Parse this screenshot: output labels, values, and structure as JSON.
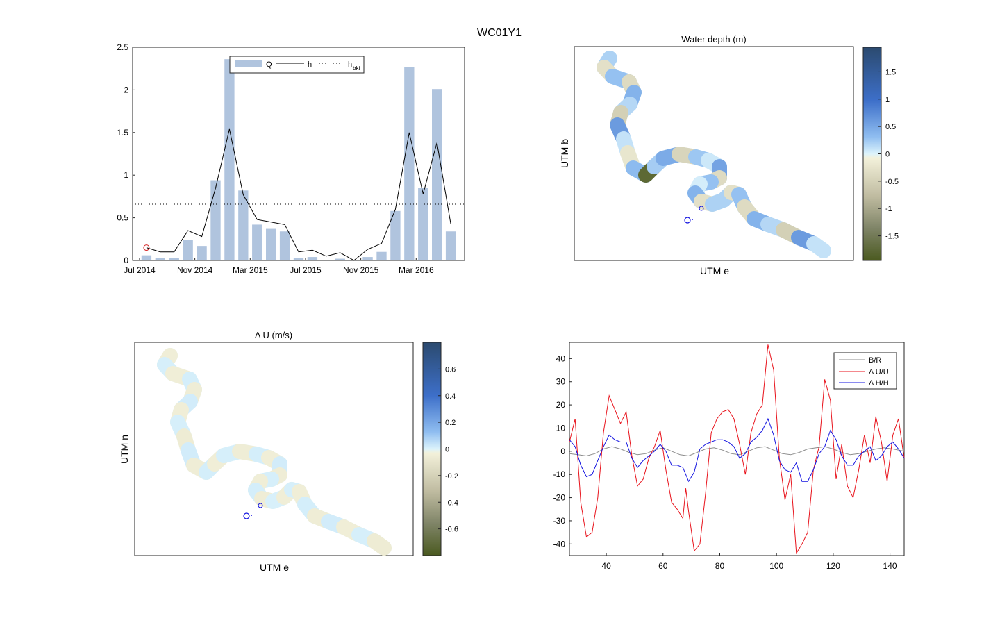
{
  "figure": {
    "title": "WC01Y1"
  },
  "chart_data": [
    {
      "id": "ts",
      "type": "bar",
      "title": "",
      "xlabel": "",
      "ylabel": "",
      "ylim": [
        0,
        2.5
      ],
      "yticks": [
        0,
        0.5,
        1,
        1.5,
        2,
        2.5
      ],
      "ytick_labels": [
        "0",
        "0.5",
        "1",
        "1.5",
        "2",
        "2.5"
      ],
      "xlim": [
        -0.5,
        23.5
      ],
      "xticks": [
        0,
        4,
        8,
        12,
        16,
        20
      ],
      "xtick_labels": [
        "Jul 2014",
        "Nov 2014",
        "Mar 2015",
        "Jul 2015",
        "Nov 2015",
        "Mar 2016"
      ],
      "legend": {
        "position": "top",
        "entries": [
          "Q",
          "h",
          "h",
          "bkf"
        ]
      },
      "series": [
        {
          "name": "Q",
          "kind": "bar",
          "color": "#b0c4de",
          "values": [
            0.06,
            0.03,
            0.03,
            0.24,
            0.17,
            0.94,
            2.36,
            0.82,
            0.42,
            0.37,
            0.34,
            0.03,
            0.04,
            0.0,
            0.02,
            0.0,
            0.04,
            0.1,
            0.58,
            2.27,
            0.85,
            2.01,
            0.34
          ]
        },
        {
          "name": "h",
          "kind": "line",
          "color": "#000000",
          "x": [
            0.5,
            1.5,
            2.5,
            3.5,
            4.5,
            5.5,
            6.5,
            7.5,
            8.5,
            9.5,
            10.5,
            11.5,
            12.5,
            13.5,
            14.5,
            15.5,
            16.5,
            17.5,
            18.5,
            19.5,
            20.5,
            21.5,
            22.5
          ],
          "values": [
            0.15,
            0.1,
            0.1,
            0.35,
            0.28,
            0.85,
            1.54,
            0.77,
            0.48,
            0.45,
            0.42,
            0.1,
            0.12,
            0.05,
            0.09,
            0.0,
            0.13,
            0.2,
            0.6,
            1.5,
            0.78,
            1.38,
            0.43
          ]
        },
        {
          "name": "h_bkf",
          "kind": "line-dotted",
          "color": "#000000",
          "value": 0.66
        }
      ],
      "marker": {
        "x": 0.5,
        "y": 0.15,
        "color": "#d62728"
      }
    },
    {
      "id": "depth",
      "type": "heatmap",
      "title": "Water depth (m)",
      "xlabel": "UTM e",
      "ylabel": "UTM b",
      "colorbar": {
        "range": [
          -1.95,
          1.95
        ],
        "ticks": [
          1.5,
          1,
          0.5,
          0,
          -0.5,
          -1,
          -1.5
        ],
        "tick_labels": [
          "1.5",
          "1",
          "0.5",
          "0",
          "-0.5",
          "-1",
          "-1.5"
        ]
      },
      "segments": [
        0.6,
        -0.3,
        0.9,
        -0.4,
        1.1,
        0.5,
        -0.6,
        1.4,
        0.3,
        -0.2,
        1.0,
        -1.8,
        0.7,
        1.2,
        -0.5,
        0.8,
        0.2,
        1.3,
        -0.4,
        0.9,
        0.1,
        1.1,
        -0.3,
        0.6
      ],
      "colors": {
        "high": "#2b4a6f",
        "mid": "#4a78d6",
        "zero": "#d8f2fb",
        "neg": "#ece7cf",
        "low": "#4b5a20"
      }
    },
    {
      "id": "du",
      "type": "heatmap",
      "title": "Δ U (m/s)",
      "xlabel": "UTM e",
      "ylabel": "UTM n",
      "colorbar": {
        "range": [
          -0.8,
          0.8
        ],
        "ticks": [
          0.6,
          0.4,
          0.2,
          0,
          -0.2,
          -0.4,
          -0.6
        ],
        "tick_labels": [
          "0.6",
          "0.4",
          "0.2",
          "0",
          "-0.2",
          "-0.4",
          "-0.6"
        ]
      },
      "segments": [
        -0.02,
        0.03,
        -0.02,
        0.04,
        -0.03,
        0.05,
        -0.02,
        0.03,
        -0.04,
        0.05,
        -0.03,
        0.04,
        -0.02,
        0.03,
        -0.03,
        0.04,
        -0.02,
        0.05,
        -0.03,
        0.03,
        -0.02,
        0.04,
        -0.03,
        0.02
      ],
      "colors": {
        "high": "#2b4a6f",
        "mid": "#4a78d6",
        "zero": "#d8f2fb",
        "neg": "#ece7cf",
        "low": "#4b5a20"
      }
    },
    {
      "id": "profiles",
      "type": "line",
      "title": "",
      "xlabel": "",
      "ylabel": "",
      "xlim": [
        27,
        145
      ],
      "ylim": [
        -45,
        47
      ],
      "xticks": [
        40,
        60,
        80,
        100,
        120,
        140
      ],
      "xtick_labels": [
        "40",
        "60",
        "80",
        "100",
        "120",
        "140"
      ],
      "yticks": [
        40,
        30,
        20,
        10,
        0,
        -10,
        -20,
        -30,
        -40
      ],
      "ytick_labels": [
        "40",
        "30",
        "20",
        "10",
        "0",
        "-10",
        "-20",
        "-30",
        "-40"
      ],
      "legend": {
        "position": "top-right",
        "entries": [
          "B/R",
          "Δ U/U",
          "Δ H/H"
        ]
      },
      "series": [
        {
          "name": "B/R",
          "color": "#8c8c8c",
          "x": [
            27,
            30,
            33,
            36,
            39,
            42,
            45,
            48,
            51,
            54,
            57,
            60,
            63,
            66,
            69,
            72,
            75,
            78,
            81,
            84,
            87,
            90,
            93,
            96,
            99,
            102,
            105,
            108,
            111,
            114,
            117,
            120,
            123,
            126,
            129,
            132,
            135,
            138,
            141,
            145
          ],
          "values": [
            -1,
            -1.5,
            -2,
            -1,
            1,
            2,
            1,
            -0.5,
            -1.5,
            -1,
            0.5,
            1.5,
            0,
            -1.5,
            -2,
            -0.5,
            1,
            1.5,
            0.5,
            -1,
            -1.5,
            0,
            1.5,
            2,
            0.5,
            -1,
            -1.5,
            -0.5,
            1,
            1.5,
            2,
            1,
            -0.5,
            -1.5,
            -1,
            0,
            1,
            1.5,
            1,
            0
          ]
        },
        {
          "name": "Δ U/U",
          "color": "#e8121b",
          "x": [
            27,
            29,
            31,
            33,
            35,
            37,
            39,
            41,
            43,
            45,
            47,
            49,
            51,
            53,
            55,
            57,
            59,
            61,
            63,
            65,
            67,
            68,
            69,
            71,
            73,
            75,
            77,
            79,
            81,
            83,
            85,
            87,
            89,
            91,
            93,
            95,
            97,
            99,
            101,
            103,
            105,
            107,
            109,
            111,
            113,
            115,
            117,
            119,
            121,
            123,
            125,
            127,
            129,
            131,
            133,
            135,
            137,
            139,
            141,
            143,
            145
          ],
          "values": [
            4,
            14,
            -22,
            -37,
            -35,
            -20,
            8,
            24,
            18,
            12,
            17,
            -2,
            -15,
            -12,
            -3,
            2,
            9,
            -8,
            -22,
            -25,
            -29,
            -16,
            -26,
            -43,
            -40,
            -18,
            8,
            14,
            17,
            18,
            14,
            3,
            -10,
            8,
            16,
            20,
            46,
            35,
            -3,
            -21,
            -10,
            -44,
            -40,
            -35,
            -8,
            2,
            31,
            22,
            -12,
            3,
            -15,
            -20,
            -8,
            7,
            -5,
            15,
            4,
            -13,
            7,
            14,
            -3
          ]
        },
        {
          "name": "Δ H/H",
          "color": "#1414e0",
          "x": [
            27,
            29,
            31,
            33,
            35,
            37,
            39,
            41,
            43,
            45,
            47,
            49,
            51,
            53,
            55,
            57,
            59,
            61,
            63,
            65,
            67,
            69,
            71,
            73,
            75,
            77,
            79,
            81,
            83,
            85,
            87,
            89,
            91,
            93,
            95,
            97,
            99,
            101,
            103,
            105,
            107,
            109,
            111,
            113,
            115,
            117,
            119,
            121,
            123,
            125,
            127,
            129,
            131,
            133,
            135,
            137,
            139,
            141,
            143,
            145
          ],
          "values": [
            5,
            2,
            -6,
            -11,
            -10,
            -4,
            2,
            7,
            5,
            4,
            4,
            -3,
            -7,
            -4,
            -2,
            0,
            3,
            0,
            -6,
            -6,
            -7,
            -13,
            -9,
            1,
            3,
            4,
            5,
            5,
            4,
            2,
            -3,
            -1,
            4,
            6,
            9,
            14,
            7,
            -4,
            -8,
            -9,
            -5,
            -13,
            -13,
            -8,
            -1,
            2,
            9,
            5,
            -2,
            -6,
            -6,
            -2,
            0,
            2,
            -4,
            -2,
            2,
            4,
            1,
            -3
          ]
        }
      ]
    }
  ]
}
